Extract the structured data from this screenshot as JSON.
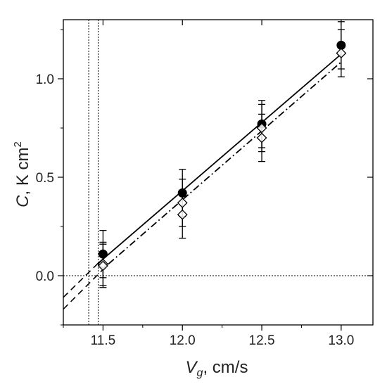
{
  "chart_data": {
    "type": "scatter",
    "xlabel": {
      "main": "V",
      "sub": "g",
      "rest": ", cm/s"
    },
    "ylabel": {
      "main": "C",
      "rest": ", K cm",
      "sup": "2"
    },
    "xlim": [
      11.25,
      13.2
    ],
    "ylim": [
      -0.25,
      1.3
    ],
    "x_ticks": [
      11.5,
      12.0,
      12.5,
      13.0
    ],
    "x_tick_labels": [
      "11.5",
      "12.0",
      "12.5",
      "13.0"
    ],
    "y_ticks": [
      0.0,
      0.5,
      1.0
    ],
    "y_tick_labels": [
      "0.0",
      "0.5",
      "1.0"
    ],
    "grid": false,
    "legend": "none",
    "series": [
      {
        "marker": "filled-circle",
        "color": "#000000",
        "points": [
          {
            "x": 11.5,
            "y": 0.11,
            "err": 0.12
          },
          {
            "x": 12.0,
            "y": 0.42,
            "err": 0.12
          },
          {
            "x": 12.5,
            "y": 0.77,
            "err": 0.12
          },
          {
            "x": 13.0,
            "y": 1.17,
            "err": 0.12
          }
        ],
        "fit": {
          "style": "solid",
          "x0": 11.465,
          "x1": 13.0,
          "y0": 0.06,
          "y1": 1.125
        },
        "extrapolation": {
          "style": "dashed",
          "x0": 11.25,
          "x1": 11.465,
          "y0": -0.11,
          "y1": 0.06
        },
        "x_intercept": 11.41
      },
      {
        "marker": "open-diamond",
        "color": "#000000",
        "points": [
          {
            "x": 11.5,
            "y": 0.06,
            "err": 0.11
          },
          {
            "x": 11.5,
            "y": 0.05,
            "err": 0.11
          },
          {
            "x": 12.0,
            "y": 0.37,
            "err": 0.12
          },
          {
            "x": 12.0,
            "y": 0.31,
            "err": 0.12
          },
          {
            "x": 12.5,
            "y": 0.75,
            "err": 0.12
          },
          {
            "x": 12.5,
            "y": 0.7,
            "err": 0.12
          },
          {
            "x": 13.0,
            "y": 1.13,
            "err": 0.12
          }
        ],
        "fit": {
          "style": "dash-dot",
          "x0": 11.535,
          "x1": 13.0,
          "y0": 0.06,
          "y1": 1.085
        },
        "extrapolation": {
          "style": "dashed",
          "x0": 11.25,
          "x1": 11.535,
          "y0": -0.17,
          "y1": 0.06
        },
        "x_intercept": 11.47
      }
    ],
    "reference_lines": {
      "horizontal_y": 0.0,
      "style": "dotted"
    }
  }
}
